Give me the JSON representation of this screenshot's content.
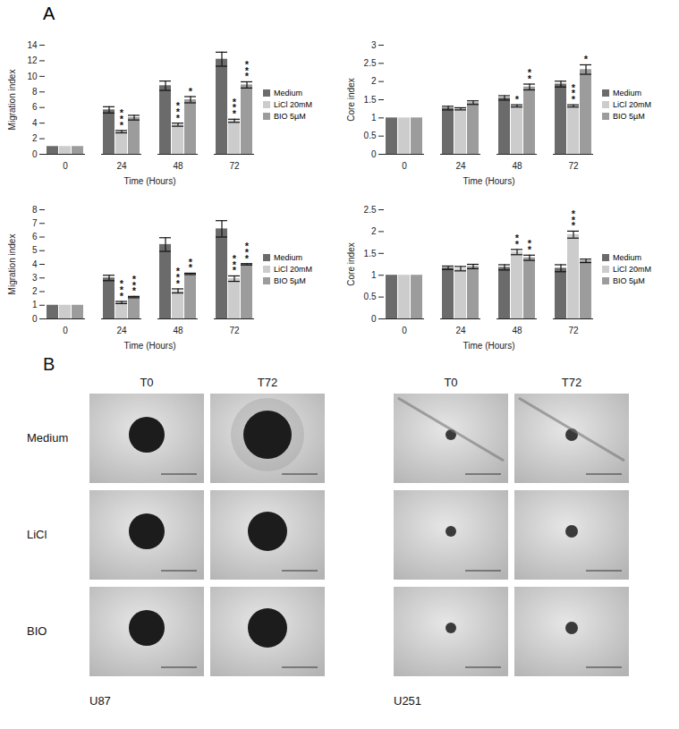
{
  "chart_data": [
    {
      "type": "bar",
      "x_label": "Time (Hours)",
      "y_label": "Migration index",
      "categories": [
        "0",
        "24",
        "48",
        "72"
      ],
      "ylim": [
        0,
        14
      ],
      "yticks": [
        0,
        2,
        4,
        6,
        8,
        10,
        12,
        14
      ],
      "legend": "right",
      "series": [
        {
          "name": "Medium",
          "color": "#6b6b6b",
          "values": [
            1,
            5.7,
            8.8,
            12.2
          ],
          "errors": [
            0,
            0.4,
            0.6,
            0.9
          ],
          "stars": [
            null,
            null,
            null,
            null
          ]
        },
        {
          "name": "LiCl 20mM",
          "color": "#cccccc",
          "values": [
            1,
            2.9,
            3.8,
            4.3
          ],
          "errors": [
            0,
            0.15,
            0.2,
            0.2
          ],
          "stars": [
            null,
            "***",
            "***",
            "***"
          ]
        },
        {
          "name": "BIO 5µM",
          "color": "#9c9c9c",
          "values": [
            1,
            4.7,
            7.0,
            8.9
          ],
          "errors": [
            0,
            0.3,
            0.4,
            0.4
          ],
          "stars": [
            null,
            null,
            "*",
            "***"
          ]
        }
      ]
    },
    {
      "type": "bar",
      "x_label": "Time (Hours)",
      "y_label": "Core index",
      "categories": [
        "0",
        "24",
        "48",
        "72"
      ],
      "ylim": [
        0,
        3
      ],
      "yticks": [
        0,
        0.5,
        1,
        1.5,
        2,
        2.5,
        3
      ],
      "legend": "right",
      "series": [
        {
          "name": "Medium",
          "color": "#6b6b6b",
          "values": [
            1,
            1.27,
            1.55,
            1.93
          ],
          "errors": [
            0,
            0.05,
            0.06,
            0.08
          ],
          "stars": [
            null,
            null,
            null,
            null
          ]
        },
        {
          "name": "LiCl 20mM",
          "color": "#cccccc",
          "values": [
            1,
            1.25,
            1.33,
            1.33
          ],
          "errors": [
            0,
            0.03,
            0.03,
            0.03
          ],
          "stars": [
            null,
            null,
            "*",
            "***"
          ]
        },
        {
          "name": "BIO 5µM",
          "color": "#9c9c9c",
          "values": [
            1,
            1.42,
            1.85,
            2.33
          ],
          "errors": [
            0,
            0.05,
            0.08,
            0.13
          ],
          "stars": [
            null,
            null,
            "**",
            "*"
          ]
        }
      ]
    },
    {
      "type": "bar",
      "x_label": "Time (Hours)",
      "y_label": "Migration index",
      "categories": [
        "0",
        "24",
        "48",
        "72"
      ],
      "ylim": [
        0,
        8
      ],
      "yticks": [
        0,
        1,
        2,
        3,
        4,
        5,
        6,
        7,
        8
      ],
      "legend": "right",
      "series": [
        {
          "name": "Medium",
          "color": "#6b6b6b",
          "values": [
            1,
            3.0,
            5.45,
            6.6
          ],
          "errors": [
            0,
            0.2,
            0.5,
            0.6
          ],
          "stars": [
            null,
            null,
            null,
            null
          ]
        },
        {
          "name": "LiCl 20mM",
          "color": "#cccccc",
          "values": [
            1,
            1.2,
            2.05,
            2.95
          ],
          "errors": [
            0,
            0.08,
            0.15,
            0.2
          ],
          "stars": [
            null,
            "***",
            "***",
            "***"
          ]
        },
        {
          "name": "BIO 5µM",
          "color": "#9c9c9c",
          "values": [
            1,
            1.6,
            3.3,
            4.0
          ],
          "errors": [
            0,
            0.05,
            0.05,
            0.05
          ],
          "stars": [
            null,
            "***",
            "**",
            "***"
          ]
        }
      ]
    },
    {
      "type": "bar",
      "x_label": "Time (Hours)",
      "y_label": "Core index",
      "categories": [
        "0",
        "24",
        "48",
        "72"
      ],
      "ylim": [
        0,
        2.5
      ],
      "yticks": [
        0,
        0.5,
        1,
        1.5,
        2,
        2.5
      ],
      "legend": "right",
      "series": [
        {
          "name": "Medium",
          "color": "#6b6b6b",
          "values": [
            1,
            1.17,
            1.18,
            1.16
          ],
          "errors": [
            0,
            0.04,
            0.06,
            0.08
          ],
          "stars": [
            null,
            null,
            null,
            null
          ]
        },
        {
          "name": "LiCl 20mM",
          "color": "#cccccc",
          "values": [
            1,
            1.15,
            1.53,
            1.93
          ],
          "errors": [
            0,
            0.05,
            0.06,
            0.08
          ],
          "stars": [
            null,
            null,
            "**",
            "***"
          ]
        },
        {
          "name": "BIO 5µM",
          "color": "#9c9c9c",
          "values": [
            1,
            1.2,
            1.4,
            1.33
          ],
          "errors": [
            0,
            0.05,
            0.06,
            0.04
          ],
          "stars": [
            null,
            null,
            "**",
            null
          ]
        }
      ]
    }
  ],
  "chart_panel_label": "A",
  "images": {
    "label": "B",
    "columns": [
      "T0",
      "T72"
    ],
    "rows": [
      "Medium",
      "LiCl",
      "BIO"
    ],
    "cell_lines": [
      "U87",
      "U251"
    ]
  }
}
